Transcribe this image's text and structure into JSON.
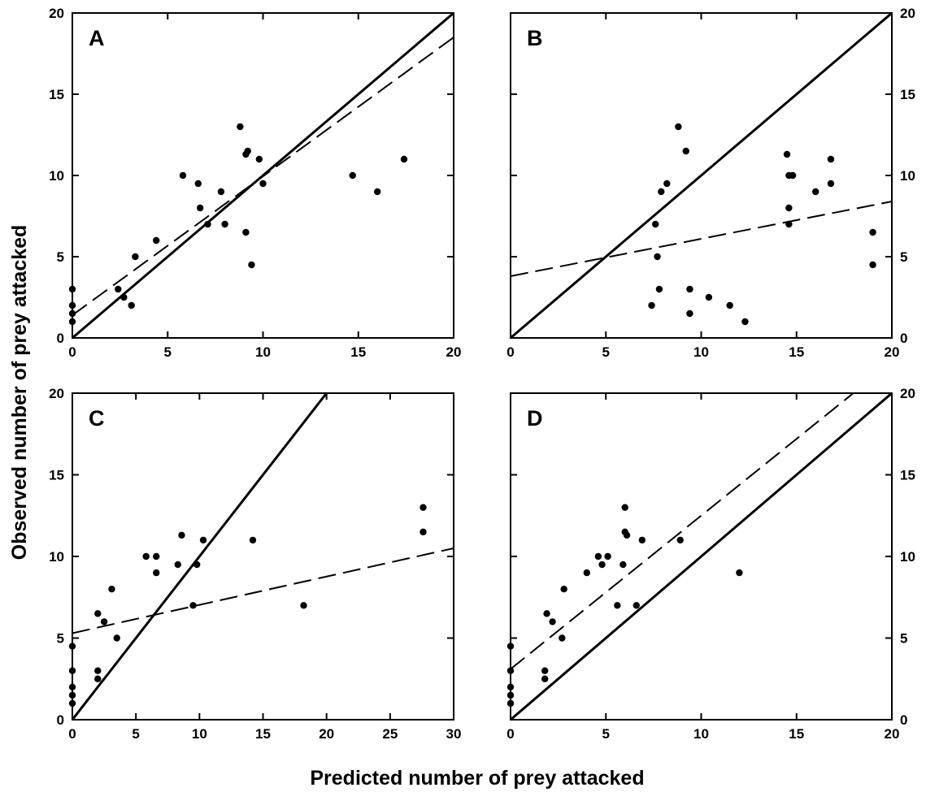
{
  "figure": {
    "xlabel": "Predicted number of prey attacked",
    "ylabel": "Observed number of prey attacked"
  },
  "chart_data": [
    {
      "type": "scatter",
      "panel": "A",
      "xlim": [
        0,
        20
      ],
      "ylim": [
        0,
        20
      ],
      "xticks": [
        0,
        5,
        10,
        15,
        20
      ],
      "yticks": [
        0,
        5,
        10,
        15,
        20
      ],
      "x_tick_labels": true,
      "y_tick_side": "left",
      "points": [
        [
          0,
          1
        ],
        [
          0,
          1.5
        ],
        [
          0,
          2
        ],
        [
          0,
          3
        ],
        [
          2.4,
          3
        ],
        [
          2.7,
          2.5
        ],
        [
          3.1,
          2
        ],
        [
          3.3,
          5
        ],
        [
          4.4,
          6
        ],
        [
          5.8,
          10
        ],
        [
          6.6,
          9.5
        ],
        [
          6.7,
          8
        ],
        [
          7.1,
          7
        ],
        [
          7.8,
          9
        ],
        [
          8.0,
          7
        ],
        [
          8.8,
          13
        ],
        [
          9.1,
          6.5
        ],
        [
          9.1,
          11.3
        ],
        [
          9.2,
          11.5
        ],
        [
          9.4,
          4.5
        ],
        [
          9.8,
          11
        ],
        [
          10.0,
          9.5
        ],
        [
          14.7,
          10
        ],
        [
          16.0,
          9
        ],
        [
          17.4,
          11
        ]
      ],
      "identity_line": [
        [
          0,
          0
        ],
        [
          20,
          20
        ]
      ],
      "fit_line": [
        [
          0,
          1.4
        ],
        [
          20,
          18.5
        ]
      ]
    },
    {
      "type": "scatter",
      "panel": "B",
      "xlim": [
        0,
        20
      ],
      "ylim": [
        0,
        20
      ],
      "xticks": [
        0,
        5,
        10,
        15,
        20
      ],
      "yticks": [
        0,
        5,
        10,
        15,
        20
      ],
      "x_tick_labels": true,
      "y_tick_side": "right",
      "points": [
        [
          7.4,
          2
        ],
        [
          7.6,
          7
        ],
        [
          7.7,
          5
        ],
        [
          7.8,
          3
        ],
        [
          7.9,
          9
        ],
        [
          8.2,
          9.5
        ],
        [
          8.8,
          13
        ],
        [
          9.2,
          11.5
        ],
        [
          9.4,
          3
        ],
        [
          9.4,
          1.5
        ],
        [
          10.4,
          2.5
        ],
        [
          11.5,
          2
        ],
        [
          12.3,
          1
        ],
        [
          14.5,
          11.3
        ],
        [
          14.6,
          10
        ],
        [
          14.6,
          8
        ],
        [
          14.6,
          7
        ],
        [
          14.8,
          10
        ],
        [
          16.0,
          9
        ],
        [
          16.8,
          9.5
        ],
        [
          16.8,
          11
        ],
        [
          19.0,
          6.5
        ],
        [
          19.0,
          4.5
        ]
      ],
      "identity_line": [
        [
          0,
          0
        ],
        [
          20,
          20
        ]
      ],
      "fit_line": [
        [
          0,
          3.8
        ],
        [
          20,
          8.4
        ]
      ]
    },
    {
      "type": "scatter",
      "panel": "C",
      "xlim": [
        0,
        30
      ],
      "ylim": [
        0,
        20
      ],
      "xticks": [
        0,
        5,
        10,
        15,
        20,
        25,
        30
      ],
      "yticks": [
        0,
        5,
        10,
        15,
        20
      ],
      "x_tick_labels": true,
      "y_tick_side": "left",
      "points": [
        [
          0,
          1
        ],
        [
          0,
          1.5
        ],
        [
          0,
          2
        ],
        [
          0,
          3
        ],
        [
          0,
          4.5
        ],
        [
          2.0,
          6.5
        ],
        [
          2.0,
          3
        ],
        [
          2.0,
          2.5
        ],
        [
          2.5,
          6
        ],
        [
          3.1,
          8
        ],
        [
          3.5,
          5
        ],
        [
          5.8,
          10
        ],
        [
          6.6,
          10
        ],
        [
          6.6,
          9
        ],
        [
          8.3,
          9.5
        ],
        [
          8.6,
          11.3
        ],
        [
          9.5,
          7
        ],
        [
          9.8,
          9.5
        ],
        [
          10.3,
          11
        ],
        [
          14.2,
          11
        ],
        [
          18.2,
          7
        ],
        [
          27.6,
          13
        ],
        [
          27.6,
          11.5
        ]
      ],
      "identity_line": [
        [
          0,
          0
        ],
        [
          20,
          20
        ]
      ],
      "fit_line": [
        [
          0,
          5.3
        ],
        [
          30,
          10.5
        ]
      ]
    },
    {
      "type": "scatter",
      "panel": "D",
      "xlim": [
        0,
        20
      ],
      "ylim": [
        0,
        20
      ],
      "xticks": [
        0,
        5,
        10,
        15,
        20
      ],
      "yticks": [
        0,
        5,
        10,
        15,
        20
      ],
      "x_tick_labels": true,
      "y_tick_side": "right",
      "points": [
        [
          0,
          1
        ],
        [
          0,
          1.5
        ],
        [
          0,
          2
        ],
        [
          0,
          3
        ],
        [
          0,
          4.5
        ],
        [
          1.8,
          3
        ],
        [
          1.8,
          2.5
        ],
        [
          1.9,
          6.5
        ],
        [
          2.2,
          6
        ],
        [
          2.7,
          5
        ],
        [
          2.8,
          8
        ],
        [
          4.0,
          9
        ],
        [
          4.6,
          10
        ],
        [
          4.8,
          9.5
        ],
        [
          5.1,
          10
        ],
        [
          5.6,
          7
        ],
        [
          5.9,
          9.5
        ],
        [
          6.0,
          13
        ],
        [
          6.0,
          11.5
        ],
        [
          6.1,
          11.3
        ],
        [
          6.6,
          7
        ],
        [
          6.9,
          11
        ],
        [
          8.9,
          11
        ],
        [
          12.0,
          9
        ]
      ],
      "identity_line": [
        [
          0,
          0
        ],
        [
          20,
          20
        ]
      ],
      "fit_line": [
        [
          0,
          3.1
        ],
        [
          20,
          21.9
        ]
      ]
    }
  ]
}
